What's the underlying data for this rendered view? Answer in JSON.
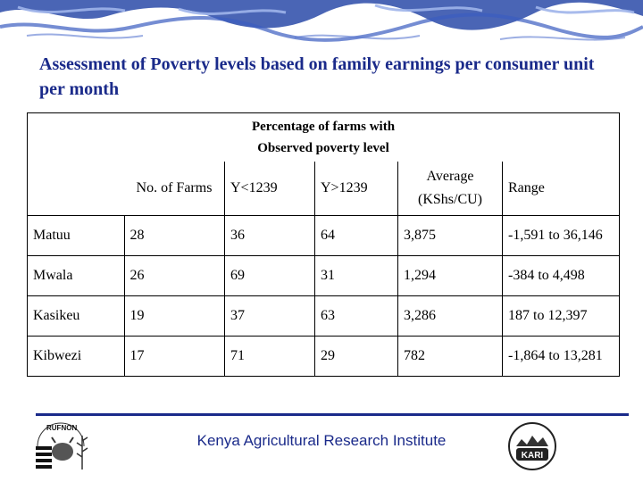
{
  "slide": {
    "title": "Assessment of Poverty levels based on family earnings per consumer unit per month"
  },
  "table": {
    "group_header_line1": "Percentage of farms with",
    "group_header_line2": "Observed poverty level",
    "headers": {
      "farms": "No. of Farms",
      "y_low": "Y<1239",
      "y_high": "Y>1239",
      "average": "Average (KShs/CU)",
      "range": "Range"
    },
    "rows": [
      {
        "site": "Matuu",
        "farms": "28",
        "y_low": "36",
        "y_high": "64",
        "average": "3,875",
        "range": "-1,591 to 36,146"
      },
      {
        "site": "Mwala",
        "farms": "26",
        "y_low": "69",
        "y_high": "31",
        "average": "1,294",
        "range": "-384 to 4,498"
      },
      {
        "site": "Kasikeu",
        "farms": "19",
        "y_low": "37",
        "y_high": "63",
        "average": "3,286",
        "range": "187 to 12,397"
      },
      {
        "site": "Kibwezi",
        "farms": "17",
        "y_low": "71",
        "y_high": "29",
        "average": "782",
        "range": "-1,864 to 13,281"
      }
    ]
  },
  "footer": {
    "institute": "Kenya Agricultural Research Institute",
    "left_logo_text": "RUFNON",
    "right_logo_text": "KARI"
  },
  "colors": {
    "title": "#1a2a8a",
    "banner": "#1f3a9a",
    "footer_line": "#1a2a8a"
  }
}
